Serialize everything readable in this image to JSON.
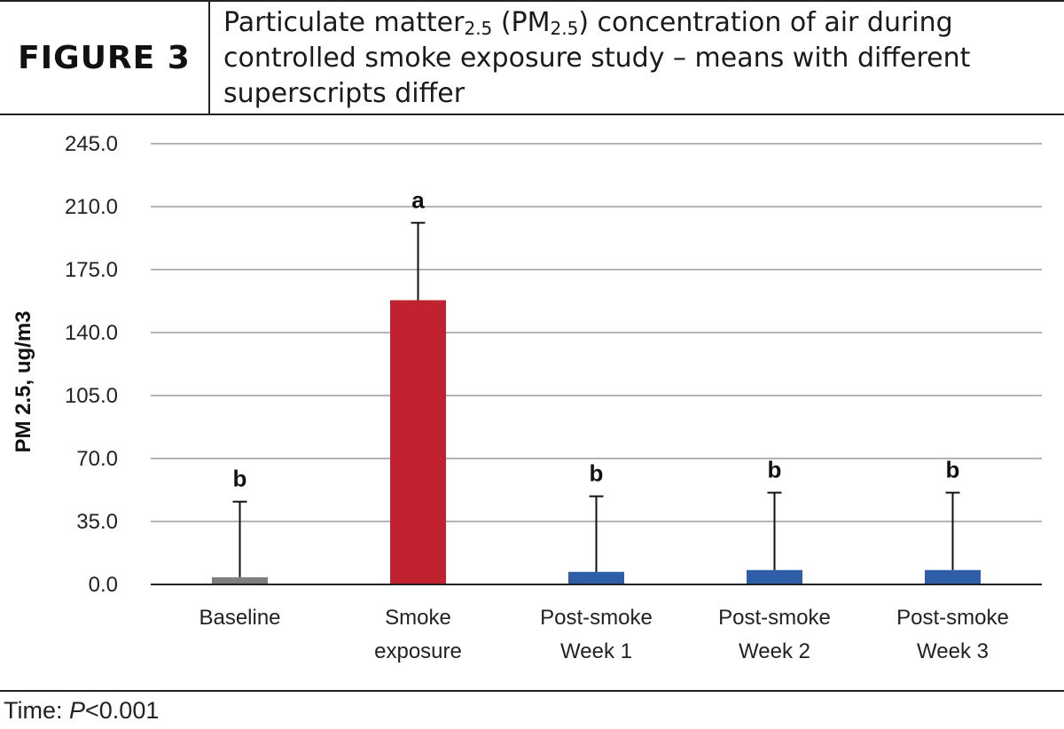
{
  "header": {
    "figure_label": "FIGURE 3",
    "title_part1": "Particulate matter",
    "title_sub1": "2.5",
    "title_part2": " (PM",
    "title_sub2": "2.5",
    "title_part3": ") concentration of air during controlled smoke exposure study – means with different superscripts differ"
  },
  "chart_data": {
    "type": "bar",
    "title": "",
    "xlabel": "",
    "ylabel": "PM 2.5, ug/m3",
    "ylim": [
      0,
      245
    ],
    "yticks": [
      0,
      35,
      70,
      105,
      140,
      175,
      210,
      245
    ],
    "ytick_labels": [
      "0.0",
      "35.0",
      "70.0",
      "105.0",
      "140.0",
      "175.0",
      "210.0",
      "245.0"
    ],
    "grid": true,
    "categories": [
      [
        "Baseline"
      ],
      [
        "Smoke",
        "exposure"
      ],
      [
        "Post-smoke",
        "Week 1"
      ],
      [
        "Post-smoke",
        "Week 2"
      ],
      [
        "Post-smoke",
        "Week 3"
      ]
    ],
    "values": [
      4,
      158,
      7,
      8,
      8
    ],
    "error_upper": [
      46,
      201,
      49,
      51,
      51
    ],
    "significance": [
      "b",
      "a",
      "b",
      "b",
      "b"
    ],
    "colors": [
      "#7f7f7f",
      "#c0232f",
      "#2e5ea8",
      "#2e5ea8",
      "#2e5ea8"
    ]
  },
  "footer": {
    "prefix": "Time: ",
    "stat": "P",
    "suffix": "<0.001"
  }
}
